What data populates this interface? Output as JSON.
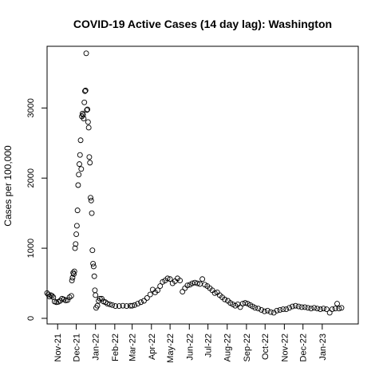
{
  "chart_data": {
    "type": "scatter",
    "title": "COVID-19 Active Cases (14 day lag): Washington",
    "xlabel": "",
    "ylabel": "Cases per 100,000",
    "ylim": [
      -80,
      3880
    ],
    "xlim": [
      "2021-10-15",
      "2023-02-28"
    ],
    "yticks": [
      0,
      1000,
      2000,
      3000
    ],
    "xticks": [
      {
        "date": "2021-11-01",
        "label": "Nov-21"
      },
      {
        "date": "2021-12-01",
        "label": "Dec-21"
      },
      {
        "date": "2022-01-01",
        "label": "Jan-22"
      },
      {
        "date": "2022-02-01",
        "label": "Feb-22"
      },
      {
        "date": "2022-03-01",
        "label": "Mar-22"
      },
      {
        "date": "2022-04-01",
        "label": "Apr-22"
      },
      {
        "date": "2022-05-01",
        "label": "May-22"
      },
      {
        "date": "2022-06-01",
        "label": "Jun-22"
      },
      {
        "date": "2022-07-01",
        "label": "Jul-22"
      },
      {
        "date": "2022-08-01",
        "label": "Aug-22"
      },
      {
        "date": "2022-09-01",
        "label": "Sep-22"
      },
      {
        "date": "2022-10-01",
        "label": "Oct-22"
      },
      {
        "date": "2022-11-01",
        "label": "Nov-22"
      },
      {
        "date": "2022-12-01",
        "label": "Dec-22"
      },
      {
        "date": "2023-01-01",
        "label": "Jan-23"
      }
    ],
    "grid": false,
    "marker": "open-circle",
    "points": [
      [
        "2021-10-15",
        360
      ],
      [
        "2021-10-17",
        340
      ],
      [
        "2021-10-19",
        310
      ],
      [
        "2021-10-21",
        330
      ],
      [
        "2021-10-23",
        320
      ],
      [
        "2021-10-25",
        300
      ],
      [
        "2021-10-27",
        240
      ],
      [
        "2021-10-30",
        230
      ],
      [
        "2021-11-02",
        235
      ],
      [
        "2021-11-05",
        250
      ],
      [
        "2021-11-08",
        280
      ],
      [
        "2021-11-11",
        270
      ],
      [
        "2021-11-14",
        255
      ],
      [
        "2021-11-17",
        260
      ],
      [
        "2021-11-20",
        300
      ],
      [
        "2021-11-23",
        320
      ],
      [
        "2021-11-24",
        540
      ],
      [
        "2021-11-25",
        580
      ],
      [
        "2021-11-26",
        650
      ],
      [
        "2021-11-27",
        630
      ],
      [
        "2021-11-28",
        670
      ],
      [
        "2021-11-29",
        1000
      ],
      [
        "2021-11-30",
        1060
      ],
      [
        "2021-12-01",
        1200
      ],
      [
        "2021-12-02",
        1320
      ],
      [
        "2021-12-03",
        1540
      ],
      [
        "2021-12-04",
        1900
      ],
      [
        "2021-12-05",
        2050
      ],
      [
        "2021-12-06",
        2200
      ],
      [
        "2021-12-07",
        2330
      ],
      [
        "2021-12-08",
        2540
      ],
      [
        "2021-12-09",
        2130
      ],
      [
        "2021-12-10",
        2880
      ],
      [
        "2021-12-11",
        2920
      ],
      [
        "2021-12-12",
        2900
      ],
      [
        "2021-12-13",
        2850
      ],
      [
        "2021-12-14",
        3080
      ],
      [
        "2021-12-15",
        3240
      ],
      [
        "2021-12-16",
        3250
      ],
      [
        "2021-12-17",
        3780
      ],
      [
        "2021-12-18",
        2970
      ],
      [
        "2021-12-19",
        2980
      ],
      [
        "2021-12-20",
        2800
      ],
      [
        "2021-12-21",
        2720
      ],
      [
        "2021-12-22",
        2300
      ],
      [
        "2021-12-23",
        2220
      ],
      [
        "2021-12-24",
        1720
      ],
      [
        "2021-12-25",
        1680
      ],
      [
        "2021-12-26",
        1500
      ],
      [
        "2021-12-27",
        970
      ],
      [
        "2021-12-28",
        780
      ],
      [
        "2021-12-29",
        740
      ],
      [
        "2021-12-30",
        600
      ],
      [
        "2021-12-31",
        400
      ],
      [
        "2022-01-01",
        330
      ],
      [
        "2022-01-02",
        150
      ],
      [
        "2022-01-04",
        180
      ],
      [
        "2022-01-06",
        250
      ],
      [
        "2022-01-08",
        280
      ],
      [
        "2022-01-11",
        280
      ],
      [
        "2022-01-14",
        240
      ],
      [
        "2022-01-17",
        230
      ],
      [
        "2022-01-20",
        210
      ],
      [
        "2022-01-24",
        200
      ],
      [
        "2022-01-28",
        190
      ],
      [
        "2022-02-02",
        175
      ],
      [
        "2022-02-08",
        175
      ],
      [
        "2022-02-14",
        180
      ],
      [
        "2022-02-20",
        175
      ],
      [
        "2022-02-26",
        180
      ],
      [
        "2022-03-01",
        180
      ],
      [
        "2022-03-05",
        190
      ],
      [
        "2022-03-10",
        210
      ],
      [
        "2022-03-15",
        230
      ],
      [
        "2022-03-20",
        250
      ],
      [
        "2022-03-25",
        290
      ],
      [
        "2022-03-30",
        340
      ],
      [
        "2022-04-03",
        410
      ],
      [
        "2022-04-07",
        370
      ],
      [
        "2022-04-11",
        400
      ],
      [
        "2022-04-15",
        460
      ],
      [
        "2022-04-19",
        520
      ],
      [
        "2022-04-23",
        540
      ],
      [
        "2022-04-27",
        570
      ],
      [
        "2022-05-01",
        560
      ],
      [
        "2022-05-05",
        500
      ],
      [
        "2022-05-09",
        530
      ],
      [
        "2022-05-13",
        570
      ],
      [
        "2022-05-17",
        540
      ],
      [
        "2022-05-21",
        380
      ],
      [
        "2022-05-25",
        430
      ],
      [
        "2022-05-29",
        470
      ],
      [
        "2022-06-02",
        480
      ],
      [
        "2022-06-06",
        500
      ],
      [
        "2022-06-10",
        510
      ],
      [
        "2022-06-14",
        500
      ],
      [
        "2022-06-18",
        490
      ],
      [
        "2022-06-22",
        560
      ],
      [
        "2022-06-26",
        480
      ],
      [
        "2022-06-30",
        460
      ],
      [
        "2022-07-04",
        430
      ],
      [
        "2022-07-08",
        400
      ],
      [
        "2022-07-12",
        360
      ],
      [
        "2022-07-16",
        370
      ],
      [
        "2022-07-20",
        330
      ],
      [
        "2022-07-24",
        300
      ],
      [
        "2022-07-28",
        270
      ],
      [
        "2022-08-02",
        250
      ],
      [
        "2022-08-06",
        220
      ],
      [
        "2022-08-10",
        200
      ],
      [
        "2022-08-14",
        180
      ],
      [
        "2022-08-18",
        200
      ],
      [
        "2022-08-22",
        160
      ],
      [
        "2022-08-26",
        210
      ],
      [
        "2022-08-30",
        220
      ],
      [
        "2022-09-03",
        210
      ],
      [
        "2022-09-07",
        190
      ],
      [
        "2022-09-11",
        170
      ],
      [
        "2022-09-15",
        150
      ],
      [
        "2022-09-20",
        140
      ],
      [
        "2022-09-25",
        120
      ],
      [
        "2022-09-30",
        100
      ],
      [
        "2022-10-05",
        110
      ],
      [
        "2022-10-10",
        90
      ],
      [
        "2022-10-15",
        80
      ],
      [
        "2022-10-20",
        110
      ],
      [
        "2022-10-25",
        120
      ],
      [
        "2022-10-30",
        130
      ],
      [
        "2022-11-04",
        130
      ],
      [
        "2022-11-09",
        150
      ],
      [
        "2022-11-14",
        170
      ],
      [
        "2022-11-19",
        180
      ],
      [
        "2022-11-24",
        170
      ],
      [
        "2022-11-29",
        160
      ],
      [
        "2022-12-04",
        160
      ],
      [
        "2022-12-09",
        150
      ],
      [
        "2022-12-14",
        140
      ],
      [
        "2022-12-19",
        150
      ],
      [
        "2022-12-24",
        140
      ],
      [
        "2022-12-29",
        130
      ],
      [
        "2023-01-03",
        140
      ],
      [
        "2023-01-08",
        130
      ],
      [
        "2023-01-13",
        80
      ],
      [
        "2023-01-17",
        130
      ],
      [
        "2023-01-22",
        140
      ],
      [
        "2023-01-25",
        210
      ],
      [
        "2023-01-28",
        140
      ],
      [
        "2023-02-01",
        150
      ]
    ]
  }
}
